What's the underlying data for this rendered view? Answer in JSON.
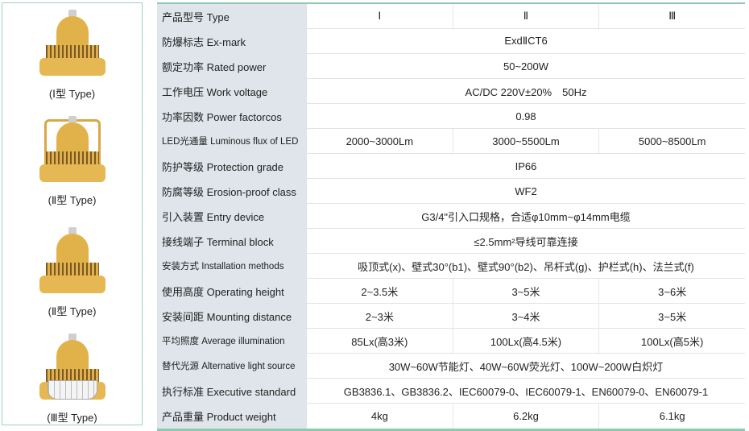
{
  "products": [
    {
      "caption": "(Ⅰ型 Type)",
      "icon": "lamp-type-1"
    },
    {
      "caption": "(Ⅱ型 Type)",
      "icon": "lamp-type-2-frame"
    },
    {
      "caption": "(Ⅱ型 Type)",
      "icon": "lamp-type-2"
    },
    {
      "caption": "(Ⅲ型 Type)",
      "icon": "lamp-type-3-guard"
    }
  ],
  "table": {
    "rows": [
      {
        "label": "产品型号 Type",
        "cells": [
          "Ⅰ",
          "Ⅱ",
          "Ⅲ"
        ]
      },
      {
        "label": "防爆标志 Ex-mark",
        "cells": [
          "ExdⅡCT6"
        ]
      },
      {
        "label": "额定功率 Rated power",
        "cells": [
          "50~200W"
        ]
      },
      {
        "label": "工作电压 Work voltage",
        "cells": [
          "AC/DC 220V±20%　50Hz"
        ]
      },
      {
        "label": "功率因数 Power factorcos",
        "cells": [
          "0.98"
        ]
      },
      {
        "label": "LED光通量 Luminous flux of LED",
        "small": true,
        "cells": [
          "2000~3000Lm",
          "3000~5500Lm",
          "5000~8500Lm"
        ]
      },
      {
        "label": "防护等级 Protection grade",
        "cells": [
          "IP66"
        ]
      },
      {
        "label": "防腐等级 Erosion-proof class",
        "cells": [
          "WF2"
        ]
      },
      {
        "label": "引入装置 Entry device",
        "cells": [
          "G3/4\"引入口规格，合适φ10mm~φ14mm电缆"
        ]
      },
      {
        "label": "接线端子 Terminal block",
        "cells": [
          "≤2.5mm²导线可靠连接"
        ]
      },
      {
        "label": "安装方式 Installation methods",
        "small": true,
        "cells": [
          "吸顶式(x)、壁式30°(b1)、壁式90°(b2)、吊杆式(g)、护栏式(h)、法兰式(f)"
        ]
      },
      {
        "label": "使用高度 Operating height",
        "cells": [
          "2~3.5米",
          "3~5米",
          "3~6米"
        ]
      },
      {
        "label": "安装间距 Mounting distance",
        "cells": [
          "2~3米",
          "3~4米",
          "3~5米"
        ]
      },
      {
        "label": "平均照度 Average illumination",
        "small": true,
        "cells": [
          "85Lx(高3米)",
          "100Lx(高4.5米)",
          "100Lx(高5米)"
        ]
      },
      {
        "label": "替代光源 Alternative light source",
        "small": true,
        "cells": [
          "30W~60W节能灯、40W~60W荧光灯、100W~200W白炽灯"
        ]
      },
      {
        "label": "执行标准 Executive standard",
        "cells": [
          "GB3836.1、GB3836.2、IEC60079-0、IEC60079-1、EN60079-0、EN60079-1"
        ]
      },
      {
        "label": "产品重量 Product weight",
        "cells": [
          "4kg",
          "6.2kg",
          "6.1kg"
        ]
      }
    ]
  }
}
